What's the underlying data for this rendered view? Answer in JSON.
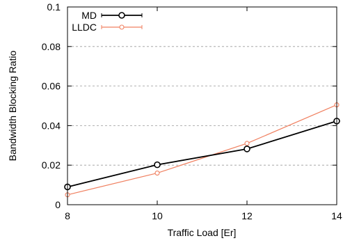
{
  "chart_data": {
    "type": "line",
    "title": "",
    "xlabel": "Traffic Load [Er]",
    "ylabel": "Bandwidth Blocking Ratio",
    "xlim": [
      8,
      14
    ],
    "ylim": [
      0,
      0.1
    ],
    "x_ticks": [
      "8",
      "10",
      "12",
      "14"
    ],
    "y_ticks": [
      "0",
      "0.02",
      "0.04",
      "0.06",
      "0.08",
      "0.1"
    ],
    "grid": "horizontal dashed",
    "legend_position": "top-left",
    "series": [
      {
        "name": "MD",
        "color": "#000000",
        "marker": "circle",
        "x": [
          8,
          10,
          12,
          14
        ],
        "y": [
          0.009,
          0.0202,
          0.0282,
          0.0423
        ]
      },
      {
        "name": "LLDC",
        "color": "#f08060",
        "marker": "circle",
        "x": [
          8,
          10,
          12,
          14
        ],
        "y": [
          0.005,
          0.016,
          0.031,
          0.0505
        ]
      }
    ]
  }
}
